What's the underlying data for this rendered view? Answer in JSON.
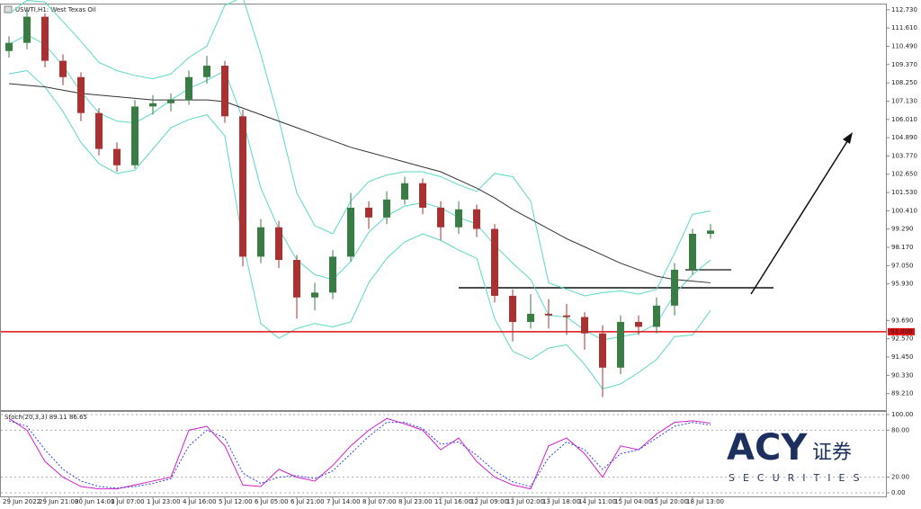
{
  "chart_data": [
    {
      "type": "candlestick",
      "title": "USWTI,H1: West Texas Oil",
      "categories": [
        "29 Jun 2022",
        null,
        "29 Jun 21:00",
        null,
        "30 Jun 14:00",
        null,
        "1 Jul 07:00",
        null,
        "1 Jul 23:00",
        null,
        "4 Jul 16:00",
        null,
        "5 Jul 12:00",
        null,
        "6 Jul 05:00",
        null,
        "6 Jul 21:00",
        null,
        "7 Jul 14:00",
        null,
        "8 Jul 07:00",
        null,
        "8 Jul 23:00",
        null,
        "11 Jul 16:00",
        null,
        "12 Jul 09:00",
        null,
        "13 Jul 02:00",
        null,
        "13 Jul 18:00",
        null,
        "14 Jul 11:00",
        null,
        "15 Jul 04:00",
        null,
        "15 Jul 20:00",
        null,
        "18 Jul 13:00",
        null
      ],
      "open": [
        110.2,
        110.7,
        112.3,
        109.6,
        108.6,
        106.4,
        104.2,
        103.2,
        106.8,
        107.0,
        107.2,
        108.6,
        109.3,
        106.2,
        97.6,
        99.4,
        97.4,
        95.1,
        95.4,
        97.6,
        100.6,
        100.0,
        101.1,
        102.1,
        100.6,
        99.4,
        100.5,
        99.3,
        95.2,
        93.6,
        94.1,
        94.0,
        93.9,
        92.9,
        90.8,
        93.6,
        93.3,
        94.6,
        96.8,
        99.0
      ],
      "high": [
        111.1,
        112.7,
        112.5,
        110.0,
        108.9,
        106.7,
        104.6,
        107.2,
        107.5,
        107.6,
        109.0,
        109.9,
        109.6,
        106.6,
        99.9,
        99.8,
        97.7,
        96.0,
        98.0,
        101.5,
        101.0,
        101.6,
        102.5,
        102.4,
        101.0,
        101.0,
        100.8,
        99.6,
        95.6,
        95.3,
        95.0,
        94.7,
        94.2,
        93.4,
        94.0,
        94.0,
        95.1,
        97.2,
        99.3,
        99.6
      ],
      "low": [
        109.8,
        110.3,
        109.2,
        108.1,
        105.9,
        103.8,
        102.8,
        103.0,
        106.3,
        106.5,
        106.9,
        108.2,
        105.8,
        97.0,
        97.2,
        96.9,
        93.8,
        94.3,
        95.0,
        97.3,
        99.3,
        99.6,
        100.8,
        100.2,
        98.6,
        99.0,
        98.8,
        94.8,
        92.4,
        93.2,
        93.2,
        92.8,
        91.9,
        89.0,
        90.4,
        92.8,
        92.9,
        94.0,
        96.5,
        98.7
      ],
      "close": [
        110.7,
        112.3,
        109.6,
        108.6,
        106.4,
        104.2,
        103.2,
        106.8,
        107.0,
        107.2,
        108.6,
        109.3,
        106.2,
        97.6,
        99.4,
        97.4,
        95.1,
        95.4,
        97.6,
        100.6,
        100.0,
        101.1,
        102.1,
        100.6,
        99.4,
        100.5,
        99.3,
        95.2,
        93.6,
        94.1,
        94.0,
        93.9,
        92.9,
        90.8,
        93.6,
        93.3,
        94.6,
        96.8,
        99.0,
        99.2
      ],
      "up_color": "#3a7d44",
      "down_color": "#a83232",
      "overlays": [
        {
          "color": "#5ad8c4",
          "values": [
            112.5,
            113.3,
            113.2,
            112.0,
            110.8,
            109.5,
            109.0,
            108.7,
            108.5,
            108.8,
            109.8,
            110.5,
            113.0,
            113.5,
            110.0,
            106.0,
            101.5,
            99.5,
            99.0,
            101.0,
            102.2,
            102.6,
            102.8,
            102.8,
            102.5,
            102.0,
            101.6,
            102.7,
            102.5,
            101.0,
            96.0,
            95.6,
            95.2,
            95.4,
            95.5,
            95.3,
            95.6,
            97.8,
            100.2,
            100.4
          ]
        },
        {
          "color": "#5ad8c4",
          "values": [
            110.6,
            111.2,
            110.6,
            109.3,
            107.7,
            106.4,
            105.9,
            105.8,
            106.4,
            107.2,
            107.9,
            108.4,
            109.0,
            106.0,
            101.8,
            99.3,
            97.4,
            96.5,
            96.2,
            97.3,
            99.1,
            100.1,
            100.7,
            100.9,
            100.6,
            100.0,
            99.6,
            98.3,
            97.2,
            96.2,
            94.0,
            93.9,
            93.1,
            92.5,
            92.7,
            92.9,
            93.5,
            95.3,
            96.5,
            97.4
          ]
        },
        {
          "color": "#5ad8c4",
          "values": [
            108.8,
            109.0,
            108.0,
            106.5,
            104.6,
            103.3,
            102.7,
            102.9,
            104.2,
            105.5,
            106.0,
            106.3,
            105.0,
            98.5,
            93.5,
            92.6,
            93.2,
            93.5,
            93.3,
            93.6,
            96.0,
            97.5,
            98.5,
            99.0,
            98.6,
            98.0,
            97.5,
            93.8,
            91.8,
            91.3,
            92.0,
            92.2,
            91.0,
            89.5,
            89.8,
            90.5,
            91.3,
            92.7,
            92.8,
            94.3
          ]
        },
        {
          "color": "#333333",
          "values": [
            108.2,
            108.1,
            108.0,
            107.8,
            107.6,
            107.5,
            107.4,
            107.3,
            107.2,
            107.2,
            107.2,
            107.2,
            107.1,
            106.7,
            106.3,
            105.9,
            105.5,
            105.1,
            104.7,
            104.3,
            104.0,
            103.7,
            103.4,
            103.1,
            102.8,
            102.3,
            101.8,
            101.2,
            100.5,
            99.9,
            99.3,
            98.7,
            98.2,
            97.7,
            97.2,
            96.8,
            96.4,
            96.2,
            96.1,
            96.0
          ]
        }
      ],
      "levels": [
        {
          "value": 93,
          "label": "93.000",
          "color": "#e01010"
        }
      ],
      "ylim": [
        88.2,
        113.05
      ],
      "yticks": [
        {
          "value": 112.73,
          "label": "112.730"
        },
        {
          "value": 111.61,
          "label": "111.610"
        },
        {
          "value": 110.49,
          "label": "110.490"
        },
        {
          "value": 109.37,
          "label": "109.370"
        },
        {
          "value": 108.25,
          "label": "108.250"
        },
        {
          "value": 107.13,
          "label": "107.130"
        },
        {
          "value": 106.01,
          "label": "106.010"
        },
        {
          "value": 104.89,
          "label": "104.890"
        },
        {
          "value": 103.77,
          "label": "103.770"
        },
        {
          "value": 102.65,
          "label": "102.650"
        },
        {
          "value": 101.53,
          "label": "101.530"
        },
        {
          "value": 100.41,
          "label": "100.410"
        },
        {
          "value": 99.29,
          "label": "99.290"
        },
        {
          "value": 98.17,
          "label": "98.170"
        },
        {
          "value": 97.05,
          "label": "97.050"
        },
        {
          "value": 95.93,
          "label": "95.930"
        },
        {
          "value": 93.69,
          "label": "93.690"
        },
        {
          "value": 92.57,
          "label": "92.570"
        },
        {
          "value": 91.45,
          "label": "91.450"
        },
        {
          "value": 90.33,
          "label": "90.330"
        },
        {
          "value": 89.21,
          "label": "89.210"
        }
      ]
    },
    {
      "type": "line",
      "title": "Stoch(20,3,3) 89.11 86.65",
      "series": [
        {
          "color": "#d020c8",
          "dashed": false,
          "values": [
            95,
            80,
            40,
            20,
            8,
            5,
            5,
            10,
            15,
            20,
            80,
            85,
            60,
            10,
            8,
            30,
            20,
            15,
            35,
            60,
            80,
            95,
            88,
            80,
            55,
            70,
            40,
            20,
            10,
            5,
            60,
            70,
            50,
            20,
            60,
            55,
            75,
            90,
            92,
            89.11
          ]
        },
        {
          "color": "#3040e0",
          "dashed": true,
          "values": [
            92,
            85,
            55,
            30,
            15,
            8,
            6,
            8,
            12,
            18,
            60,
            80,
            70,
            25,
            12,
            20,
            22,
            18,
            28,
            50,
            72,
            90,
            90,
            82,
            62,
            65,
            48,
            28,
            14,
            8,
            45,
            65,
            55,
            30,
            50,
            55,
            70,
            85,
            90,
            86.65
          ]
        }
      ],
      "ylim": [
        -4.6,
        103.4
      ],
      "yticks": [
        {
          "value": 100,
          "label": "100.00"
        },
        {
          "value": 80,
          "label": "80.00"
        },
        {
          "value": 20,
          "label": "20.00"
        },
        {
          "value": 0,
          "label": "0.00"
        }
      ]
    }
  ],
  "logo": {
    "name": "ACY",
    "cn": "证券",
    "sub": "SECURITIES"
  }
}
